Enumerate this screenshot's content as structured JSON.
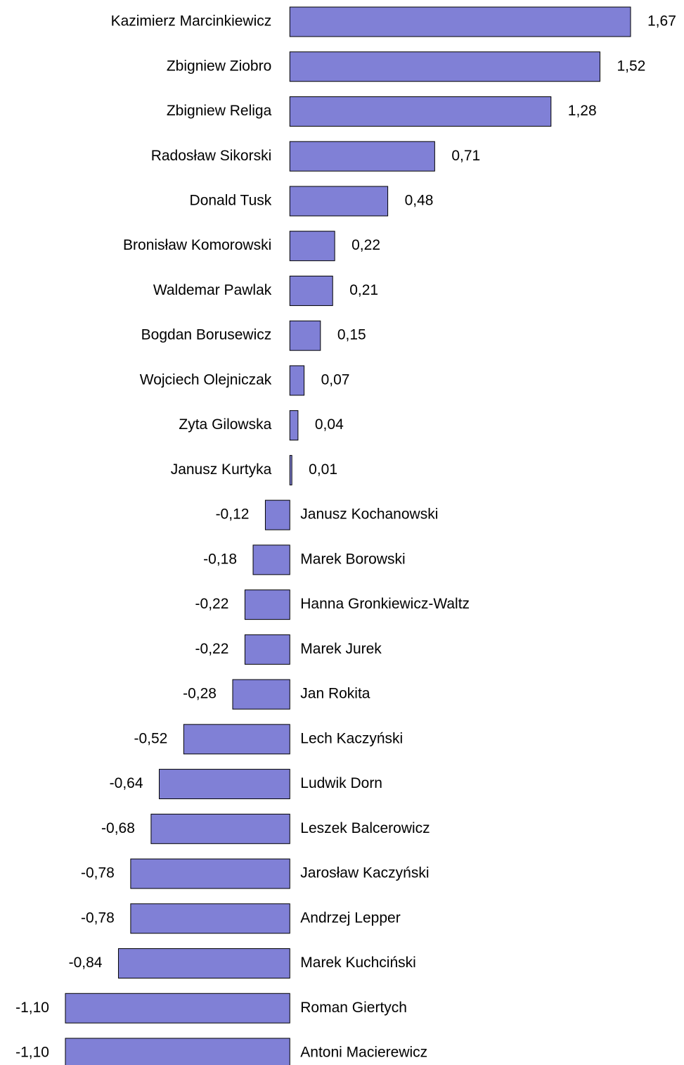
{
  "chart_data": {
    "type": "bar",
    "orientation": "horizontal",
    "color": "#8080d6",
    "categories": [
      "Kazimierz Marcinkiewicz",
      "Zbigniew Ziobro",
      "Zbigniew Religa",
      "Radosław Sikorski",
      "Donald Tusk",
      "Bronisław Komorowski",
      "Waldemar Pawlak",
      "Bogdan Borusewicz",
      "Wojciech Olejniczak",
      "Zyta Gilowska",
      "Janusz Kurtyka",
      "Janusz Kochanowski",
      "Marek Borowski",
      "Hanna Gronkiewicz-Waltz",
      "Marek Jurek",
      "Jan Rokita",
      "Lech Kaczyński",
      "Ludwik Dorn",
      "Leszek Balcerowicz",
      "Jarosław Kaczyński",
      "Andrzej Lepper",
      "Marek Kuchciński",
      "Roman Giertych",
      "Antoni Macierewicz"
    ],
    "values": [
      1.67,
      1.52,
      1.28,
      0.71,
      0.48,
      0.22,
      0.21,
      0.15,
      0.07,
      0.04,
      0.01,
      -0.12,
      -0.18,
      -0.22,
      -0.22,
      -0.28,
      -0.52,
      -0.64,
      -0.68,
      -0.78,
      -0.78,
      -0.84,
      -1.1,
      -1.1
    ],
    "value_labels": [
      "1,67",
      "1,52",
      "1,28",
      "0,71",
      "0,48",
      "0,22",
      "0,21",
      "0,15",
      "0,07",
      "0,04",
      "0,01",
      "-0,12",
      "-0,18",
      "-0,22",
      "-0,22",
      "-0,28",
      "-0,52",
      "-0,64",
      "-0,68",
      "-0,78",
      "-0,78",
      "-0,84",
      "-1,10",
      "-1,10"
    ]
  }
}
